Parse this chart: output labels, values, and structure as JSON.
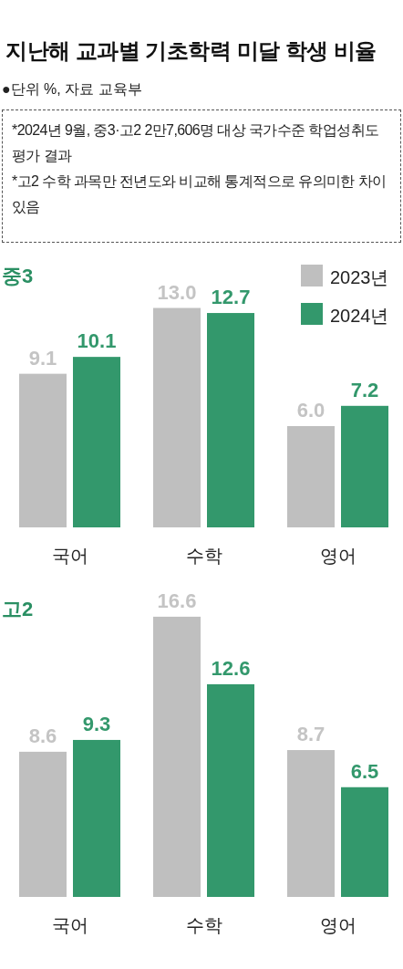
{
  "chart_data": [
    {
      "type": "other",
      "title": "지난해 교과별 기초학력 미달 학생 비율",
      "subtitle": "●단위 %, 자료 교육부",
      "annotations": [
        "*2024년 9월, 중3·고2 2만7,606명 대상 국가수준 학업성취도 평가 결과",
        "*고2 수학 과목만 전년도와 비교해 통계적으로 유의미한 차이 있음"
      ]
    },
    {
      "type": "bar",
      "title": "중3",
      "categories": [
        "국어",
        "수학",
        "영어"
      ],
      "legend": "top right",
      "series": [
        {
          "name": "2023년",
          "color": "#bfbfbf",
          "values": [
            9.1,
            13.0,
            6.0
          ],
          "value_labels": [
            "9.1",
            "13.0",
            "6.0"
          ]
        },
        {
          "name": "2024년",
          "color": "#33986c",
          "values": [
            10.1,
            12.7,
            7.2
          ],
          "value_labels": [
            "10.1",
            "12.7",
            "7.2"
          ]
        }
      ]
    },
    {
      "type": "bar",
      "title": "고2",
      "categories": [
        "국어",
        "수학",
        "영어"
      ],
      "series": [
        {
          "color": "#bfbfbf",
          "values": [
            8.6,
            16.6,
            8.7
          ],
          "value_labels": [
            "8.6",
            "16.6",
            "8.7"
          ]
        },
        {
          "color": "#33986c",
          "values": [
            9.3,
            12.6,
            6.5
          ],
          "value_labels": [
            "9.3",
            "12.6",
            "6.5"
          ]
        }
      ]
    }
  ]
}
